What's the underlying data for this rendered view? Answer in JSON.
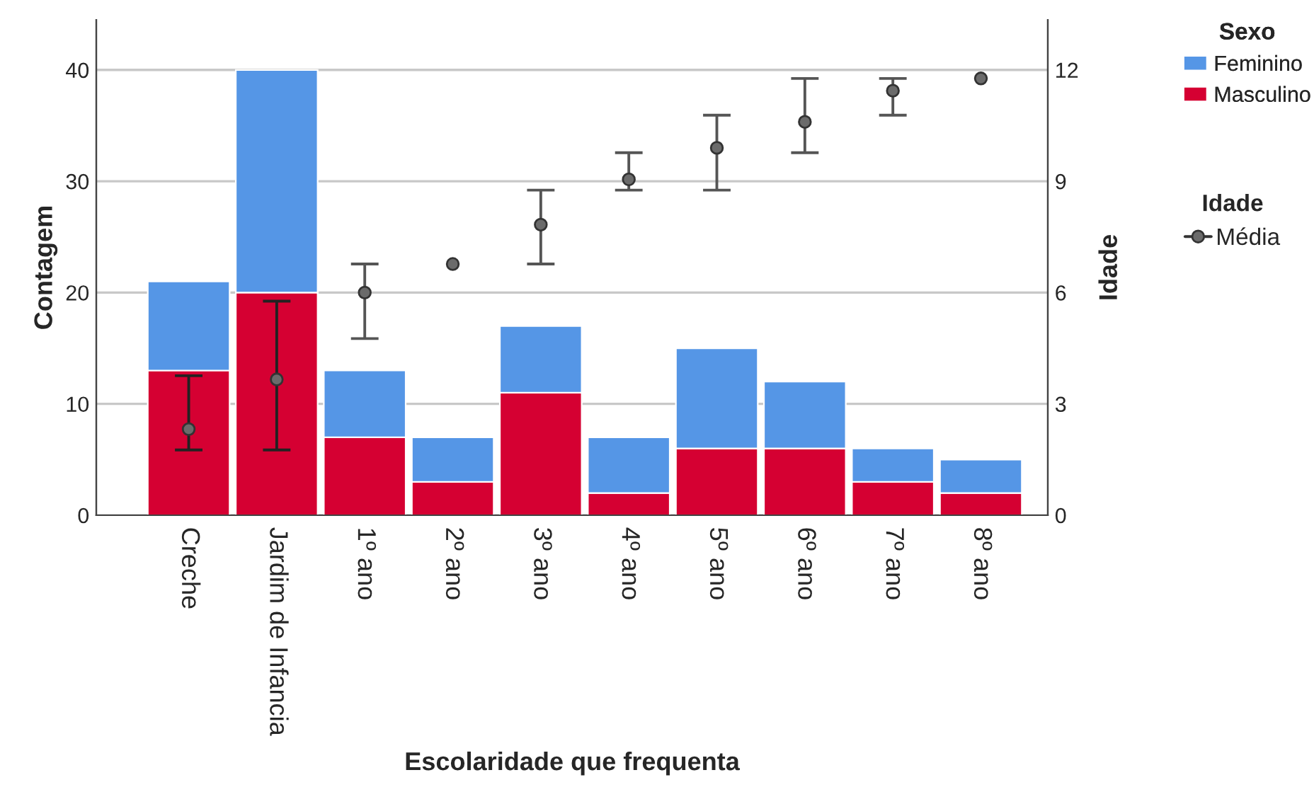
{
  "chart_data": {
    "type": "bar",
    "stacked": true,
    "xlabel": "Escolaridade que frequenta",
    "ylabel": "Contagem",
    "y2label": "Idade",
    "legend_title": "Sexo",
    "categories": [
      "Creche",
      "Jardim de Infancia",
      "1º ano",
      "2º ano",
      "3º ano",
      "4º ano",
      "5º ano",
      "6º ano",
      "7º ano",
      "8º ano"
    ],
    "series": [
      {
        "name": "Masculino",
        "color": "#d50032",
        "values": [
          13,
          20,
          7,
          3,
          11,
          2,
          6,
          6,
          3,
          2
        ]
      },
      {
        "name": "Feminino",
        "color": "#5596e6",
        "values": [
          8,
          20,
          6,
          4,
          6,
          5,
          9,
          6,
          3,
          3
        ]
      },
      {
        "name": "Média",
        "type": "scatter",
        "axis": "y2",
        "color": "#6b6b6b",
        "marker": "circle",
        "values": [
          2.32,
          3.66,
          6.0,
          6.77,
          7.83,
          9.05,
          9.9,
          10.6,
          11.44,
          11.77
        ],
        "errors": [
          [
            1.76,
            3.76
          ],
          [
            1.76,
            5.77
          ],
          [
            4.76,
            6.77
          ],
          null,
          [
            6.77,
            8.76
          ],
          [
            8.76,
            9.77
          ],
          [
            8.76,
            10.78
          ],
          [
            9.77,
            11.77
          ],
          [
            10.78,
            11.77
          ],
          null
        ]
      }
    ],
    "annotations": [
      "Idade"
    ],
    "ylim": [
      0,
      44.5
    ],
    "yticks": [
      0,
      10,
      20,
      30,
      40
    ],
    "y2lim": [
      0,
      13.35
    ],
    "y2ticks": [
      0,
      3,
      6,
      9,
      12
    ],
    "grid": "y",
    "legend": "top right"
  }
}
